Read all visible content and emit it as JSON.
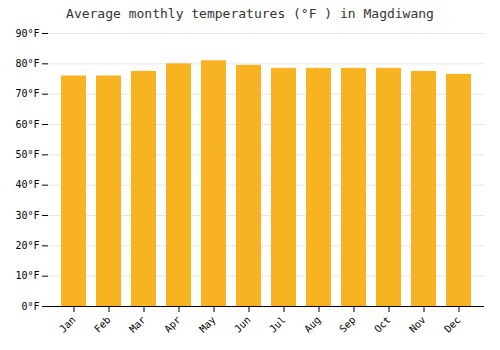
{
  "chart_data": {
    "type": "bar",
    "title": "Average monthly temperatures (°F ) in Magdiwang",
    "categories": [
      "Jan",
      "Feb",
      "Mar",
      "Apr",
      "May",
      "Jun",
      "Jul",
      "Aug",
      "Sep",
      "Oct",
      "Nov",
      "Dec"
    ],
    "values": [
      76.0,
      76.0,
      77.5,
      80.0,
      81.0,
      79.5,
      78.5,
      78.5,
      78.5,
      78.5,
      77.5,
      76.5
    ],
    "color": "#F7B321",
    "ylim": [
      0,
      90
    ],
    "yticks": [
      {
        "value": 0,
        "label": "0°F"
      },
      {
        "value": 10,
        "label": "10°F"
      },
      {
        "value": 20,
        "label": "20°F"
      },
      {
        "value": 30,
        "label": "30°F"
      },
      {
        "value": 40,
        "label": "40°F"
      },
      {
        "value": 50,
        "label": "50°F"
      },
      {
        "value": 60,
        "label": "60°F"
      },
      {
        "value": 70,
        "label": "70°F"
      },
      {
        "value": 80,
        "label": "80°F"
      },
      {
        "value": 90,
        "label": "90°F"
      }
    ],
    "grid": true
  }
}
